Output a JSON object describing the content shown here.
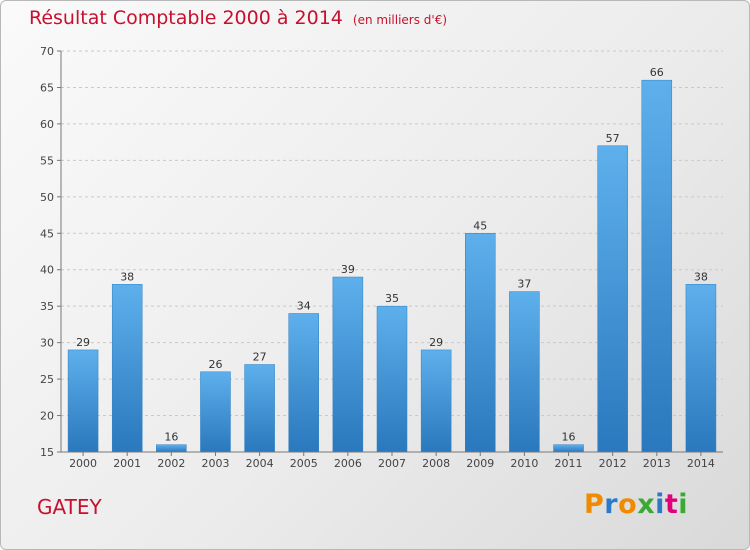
{
  "chart_data": {
    "type": "bar",
    "title": "Résultat Comptable 2000 à 2014",
    "subtitle": "(en milliers d'€)",
    "categories": [
      "2000",
      "2001",
      "2002",
      "2003",
      "2004",
      "2005",
      "2006",
      "2007",
      "2008",
      "2009",
      "2010",
      "2011",
      "2012",
      "2013",
      "2014"
    ],
    "values": [
      29,
      38,
      16,
      26,
      27,
      34,
      39,
      35,
      29,
      45,
      37,
      16,
      57,
      66,
      38
    ],
    "ylim": [
      15,
      70
    ],
    "yticks": [
      15,
      20,
      25,
      30,
      35,
      40,
      45,
      50,
      55,
      60,
      65,
      70
    ],
    "grid": true,
    "bar_color": "#3a8fd0"
  },
  "footer": {
    "commune": "GATEY",
    "logo_letters": [
      "P",
      "r",
      "o",
      "x",
      "i",
      "t",
      "i"
    ],
    "logo_colors": [
      "#f08a00",
      "#2a7ac9",
      "#f08a00",
      "#3aaa35",
      "#2a7ac9",
      "#e2007a",
      "#3aaa35"
    ]
  }
}
